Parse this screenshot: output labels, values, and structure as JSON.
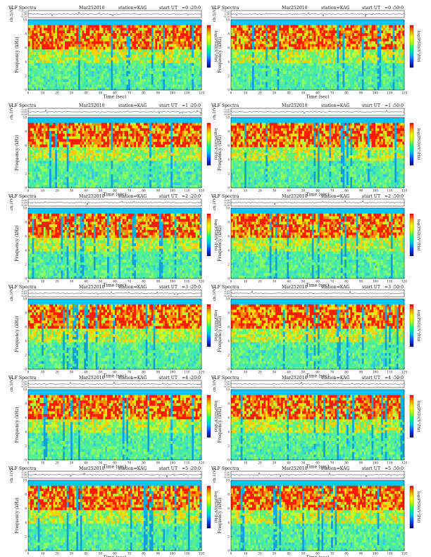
{
  "page": {
    "title_prefix": "VLF Spectra",
    "date": "Mar252010",
    "station": "station=KAG",
    "start_label": "start  UT"
  },
  "axis_labels": {
    "ch_ylabel": "ch.1(V)",
    "freq_ylabel": "Frequency (kHz)",
    "time_xlabel": "Time (sec)",
    "colorbar_label": "log(PSD)(V²/Hz)"
  },
  "panels": [
    {
      "start_ut": "=0 :20:0"
    },
    {
      "start_ut": "=0 :50:0"
    },
    {
      "start_ut": "=1 :20:0"
    },
    {
      "start_ut": "=1 :50:0"
    },
    {
      "start_ut": "=2 :20:0"
    },
    {
      "start_ut": "=2 :50:0"
    },
    {
      "start_ut": "=3 :20:0"
    },
    {
      "start_ut": "=3 :50:0"
    },
    {
      "start_ut": "=4 :20:0"
    },
    {
      "start_ut": "=4 :50:0"
    },
    {
      "start_ut": "=5 :20:0"
    },
    {
      "start_ut": "=5 :50:0"
    }
  ],
  "chart_data": {
    "type": "heatmap",
    "x_axis": {
      "label": "Time (sec)",
      "range": [
        0,
        120
      ],
      "ticks": [
        0,
        10,
        20,
        30,
        40,
        50,
        60,
        70,
        80,
        90,
        100,
        110,
        120
      ]
    },
    "y_axis": {
      "label": "Frequency (kHz)",
      "range": [
        0,
        10
      ],
      "ticks": [
        0,
        2,
        4,
        6,
        8,
        10
      ]
    },
    "waveform_axis": {
      "label": "ch.1(V)",
      "ticks": [
        "0.20",
        "0.00",
        "-0.20"
      ]
    },
    "colorbar": {
      "colors": [
        "#000080",
        "#0040ff",
        "#00c0ff",
        "#00ff80",
        "#c0ff00",
        "#ffff00",
        "#ffa000",
        "#ff0000"
      ]
    },
    "band_kHz": [
      6,
      9
    ],
    "grid": false
  }
}
